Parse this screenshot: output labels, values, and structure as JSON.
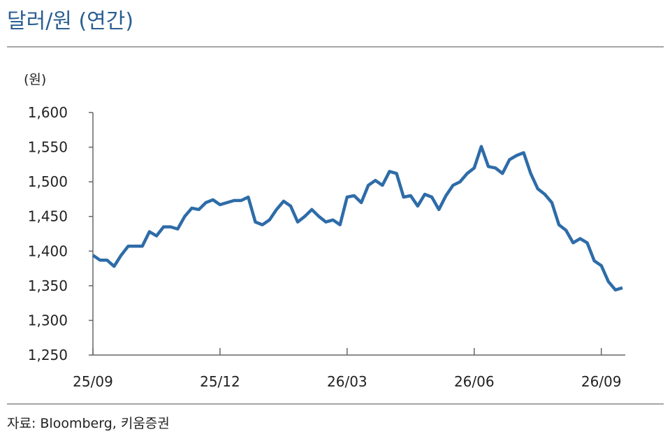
{
  "chart_data": {
    "type": "line",
    "title": "달러/원 (연간)",
    "y_unit": "(원)",
    "source": "자료: Bloomberg, 키움증권",
    "color": "#2e6ca8",
    "categories": [
      "25/09",
      null,
      null,
      null,
      null,
      null,
      null,
      null,
      null,
      null,
      null,
      null,
      null,
      null,
      null,
      null,
      null,
      null,
      "25/12",
      null,
      null,
      null,
      null,
      null,
      null,
      null,
      null,
      null,
      null,
      null,
      null,
      null,
      null,
      null,
      null,
      null,
      "26/03",
      null,
      null,
      null,
      null,
      null,
      null,
      null,
      null,
      null,
      null,
      null,
      null,
      null,
      null,
      null,
      null,
      null,
      "26/06",
      null,
      null,
      null,
      null,
      null,
      null,
      null,
      null,
      null,
      null,
      null,
      null,
      null,
      null,
      null,
      null,
      null,
      "26/09",
      null,
      null,
      null
    ],
    "values": [
      1394,
      1387,
      1387,
      1378,
      1394,
      1407,
      1407,
      1407,
      1428,
      1422,
      1435,
      1435,
      1432,
      1450,
      1462,
      1460,
      1470,
      1474,
      1467,
      1470,
      1473,
      1473,
      1478,
      1442,
      1438,
      1445,
      1460,
      1472,
      1465,
      1442,
      1450,
      1460,
      1450,
      1442,
      1445,
      1438,
      1478,
      1480,
      1470,
      1495,
      1502,
      1495,
      1515,
      1512,
      1478,
      1480,
      1465,
      1482,
      1478,
      1460,
      1480,
      1495,
      1500,
      1512,
      1520,
      1551,
      1522,
      1520,
      1512,
      1532,
      1538,
      1542,
      1512,
      1490,
      1482,
      1470,
      1438,
      1430,
      1412,
      1418,
      1412,
      1386,
      1379,
      1356,
      1344,
      1347
    ],
    "ylim": [
      1250,
      1600
    ],
    "yticks": [
      {
        "value": 1250,
        "label": "1,250"
      },
      {
        "value": 1300,
        "label": "1,300"
      },
      {
        "value": 1350,
        "label": "1,350"
      },
      {
        "value": 1400,
        "label": "1,400"
      },
      {
        "value": 1450,
        "label": "1,450"
      },
      {
        "value": 1500,
        "label": "1,500"
      },
      {
        "value": 1550,
        "label": "1,550"
      },
      {
        "value": 1600,
        "label": "1,600"
      }
    ]
  }
}
